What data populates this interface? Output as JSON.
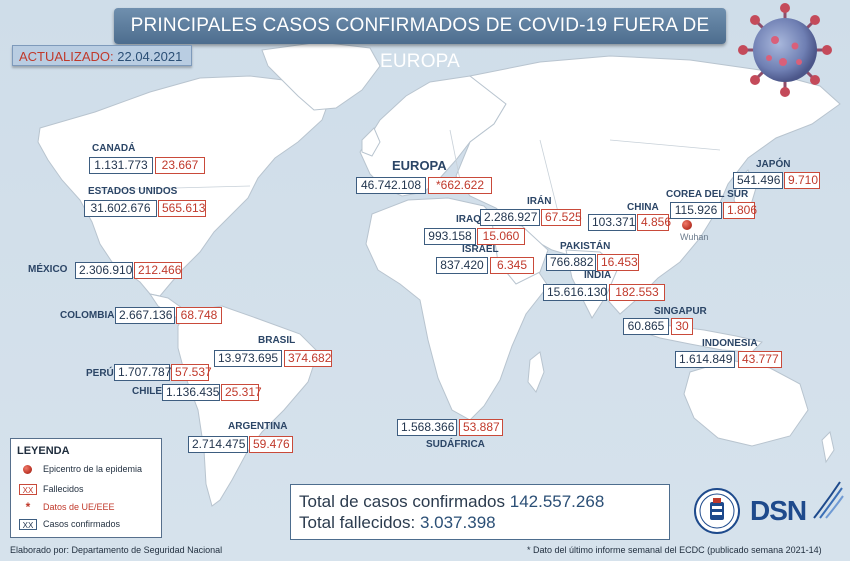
{
  "title": "PRINCIPALES CASOS CONFIRMADOS DE COVID-19 FUERA DE EUROPA",
  "updated": {
    "label": "ACTUALIZADO:",
    "date": "22.04.2021"
  },
  "colors": {
    "confirmed": "#3d5d80",
    "deaths": "#c0392b",
    "banner": "#5a7a9b"
  },
  "regions": [
    {
      "id": "canada",
      "name": "CANADÁ",
      "confirmed": "1.131.773",
      "deaths": "23.667"
    },
    {
      "id": "usa",
      "name": "ESTADOS UNIDOS",
      "confirmed": "31.602.676",
      "deaths": "565.613"
    },
    {
      "id": "mexico",
      "name": "MÉXICO",
      "confirmed": "2.306.910",
      "deaths": "212.466"
    },
    {
      "id": "colombia",
      "name": "COLOMBIA",
      "confirmed": "2.667.136",
      "deaths": "68.748"
    },
    {
      "id": "brasil",
      "name": "BRASIL",
      "confirmed": "13.973.695",
      "deaths": "374.682"
    },
    {
      "id": "peru",
      "name": "PERÚ",
      "confirmed": "1.707.787",
      "deaths": "57.537"
    },
    {
      "id": "chile",
      "name": "CHILE",
      "confirmed": "1.136.435",
      "deaths": "25.317"
    },
    {
      "id": "argentina",
      "name": "ARGENTINA",
      "confirmed": "2.714.475",
      "deaths": "59.476"
    },
    {
      "id": "europa",
      "name": "EUROPA",
      "confirmed": "46.742.108",
      "deaths": "*662.622"
    },
    {
      "id": "iran",
      "name": "IRÁN",
      "confirmed": "2.286.927",
      "deaths": "67.525"
    },
    {
      "id": "iraq",
      "name": "IRAQ",
      "confirmed": "993.158",
      "deaths": "15.060"
    },
    {
      "id": "israel",
      "name": "ISRAEL",
      "confirmed": "837.420",
      "deaths": "6.345"
    },
    {
      "id": "pakistan",
      "name": "PAKISTÁN",
      "confirmed": "766.882",
      "deaths": "16.453"
    },
    {
      "id": "india",
      "name": "INDIA",
      "confirmed": "15.616.130",
      "deaths": "182.553"
    },
    {
      "id": "china",
      "name": "CHINA",
      "confirmed": "103.371",
      "deaths": "4.856"
    },
    {
      "id": "corea",
      "name": "COREA DEL SUR",
      "confirmed": "115.926",
      "deaths": "1.806"
    },
    {
      "id": "japon",
      "name": "JAPÓN",
      "confirmed": "541.496",
      "deaths": "9.710"
    },
    {
      "id": "singapur",
      "name": "SINGAPUR",
      "confirmed": "60.865",
      "deaths": "30"
    },
    {
      "id": "indonesia",
      "name": "INDONESIA",
      "confirmed": "1.614.849",
      "deaths": "43.777"
    },
    {
      "id": "sudafrica",
      "name": "SUDÁFRICA",
      "confirmed": "1.568.366",
      "deaths": "53.887"
    }
  ],
  "epicenter": {
    "label": "Wuhan",
    "icon": "epicenter-dot-icon"
  },
  "legend": {
    "title": "LEYENDA",
    "epicenter": "Epicentro de la epidemia",
    "deaths_swatch": "XX",
    "deaths": "Fallecidos",
    "ue_mark": "*",
    "ue": "Datos de UE/EEE",
    "confirmed_swatch": "XX",
    "confirmed": "Casos confirmados"
  },
  "totals": {
    "confirmed_label": "Total de casos confirmados",
    "confirmed_value": "142.557.268",
    "deaths_label": "Total fallecidos:",
    "deaths_value": "3.037.398"
  },
  "footer": {
    "credit": "Elaborado por: Departamento de Seguridad Nacional",
    "note": "* Dato del último informe semanal del ECDC (publicado semana 2021-14)"
  },
  "logo_text": "DSN",
  "virus_icon": "coronavirus-icon",
  "seal_icon": "dsn-seal-icon"
}
